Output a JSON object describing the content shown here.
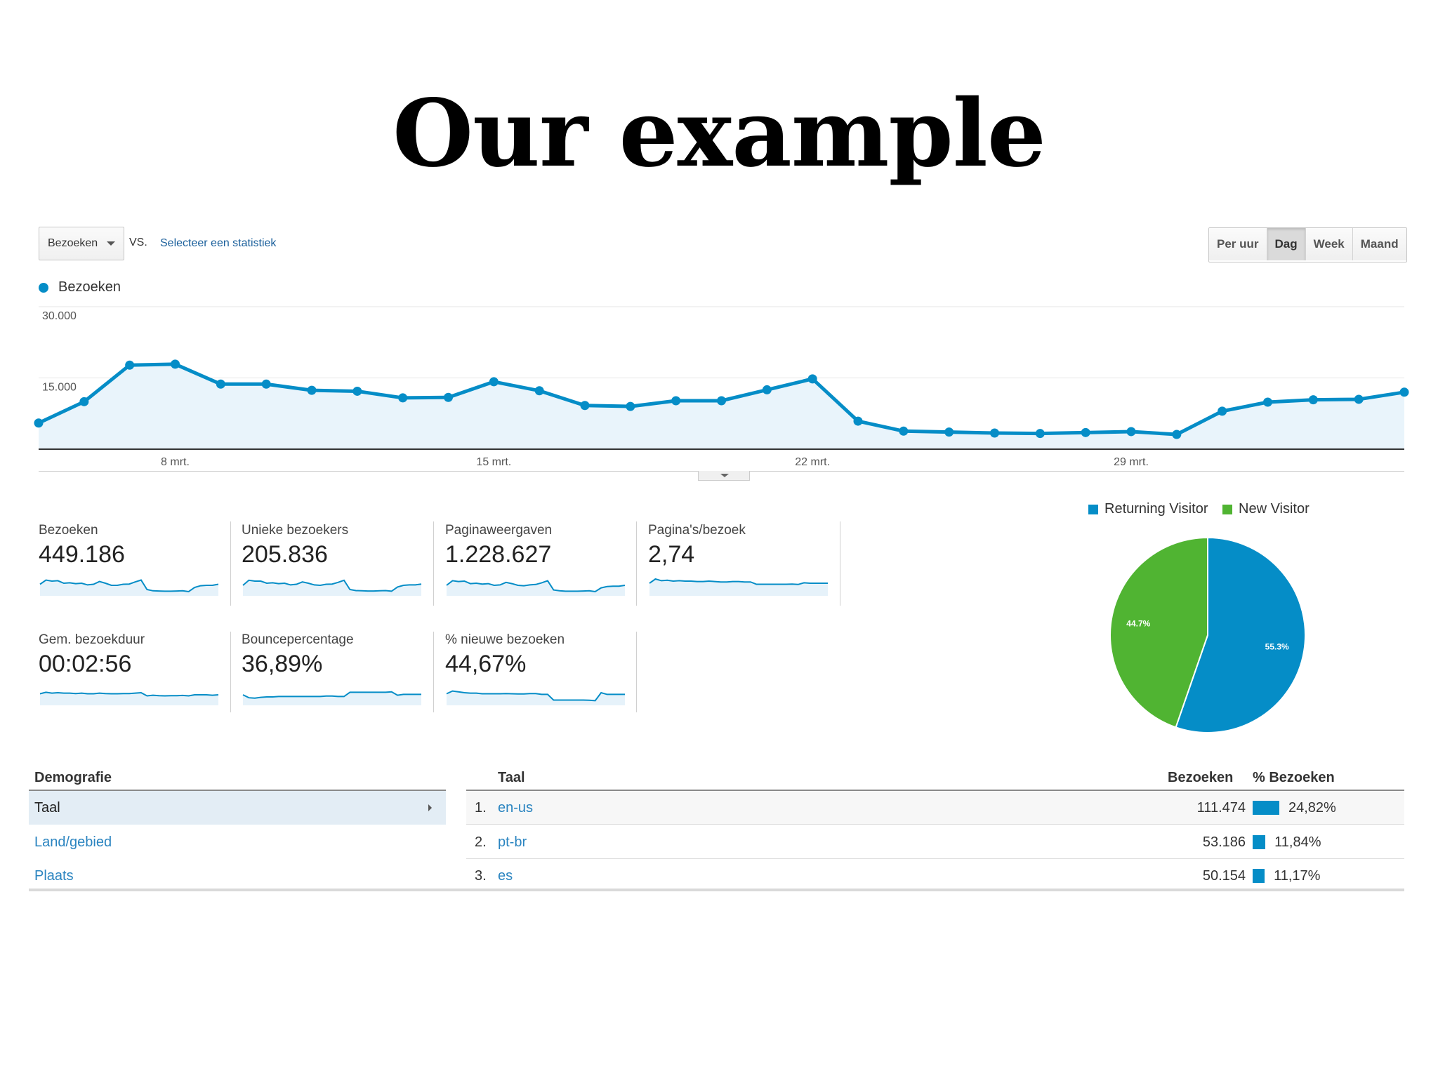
{
  "slide": {
    "title": "Our example"
  },
  "toolbar": {
    "metric_select": "Bezoeken",
    "vs_label": "VS.",
    "select_stat_link": "Selecteer een statistiek",
    "periods": [
      "Per uur",
      "Dag",
      "Week",
      "Maand"
    ],
    "active_period": "Dag"
  },
  "chart_data": {
    "type": "area",
    "series": [
      {
        "name": "Bezoeken",
        "values": [
          5500,
          10000,
          17700,
          17900,
          13700,
          13700,
          12400,
          12200,
          10800,
          10900,
          14200,
          12300,
          9200,
          9000,
          10200,
          10200,
          12500,
          14800,
          5900,
          3800,
          3600,
          3400,
          3300,
          3500,
          3700,
          3100,
          8000,
          9900,
          10400,
          10500,
          12000
        ]
      }
    ],
    "x_tick_labels": [
      "8 mrt.",
      "15 mrt.",
      "22 mrt.",
      "29 mrt."
    ],
    "y_tick_labels": [
      "30.000",
      "15.000"
    ],
    "ylim": [
      0,
      30000
    ],
    "color": "#058dc7",
    "fill": "#e9f4fb",
    "legend": "top-left",
    "grid": true
  },
  "scorecards": [
    {
      "label": "Bezoeken",
      "value": "449.186",
      "sparkline": [
        0.55,
        0.75,
        0.7,
        0.72,
        0.6,
        0.62,
        0.58,
        0.6,
        0.52,
        0.55,
        0.68,
        0.6,
        0.5,
        0.5,
        0.55,
        0.56,
        0.66,
        0.75,
        0.3,
        0.24,
        0.23,
        0.22,
        0.22,
        0.23,
        0.24,
        0.2,
        0.4,
        0.48,
        0.5,
        0.5,
        0.55
      ]
    },
    {
      "label": "Unieke bezoekers",
      "value": "205.836",
      "sparkline": [
        0.5,
        0.74,
        0.7,
        0.7,
        0.6,
        0.62,
        0.58,
        0.6,
        0.52,
        0.55,
        0.66,
        0.6,
        0.52,
        0.5,
        0.55,
        0.56,
        0.64,
        0.74,
        0.3,
        0.25,
        0.24,
        0.23,
        0.23,
        0.24,
        0.25,
        0.22,
        0.42,
        0.5,
        0.52,
        0.52,
        0.56
      ]
    },
    {
      "label": "Paginaweergaven",
      "value": "1.228.627",
      "sparkline": [
        0.5,
        0.72,
        0.68,
        0.7,
        0.58,
        0.6,
        0.56,
        0.58,
        0.5,
        0.52,
        0.64,
        0.58,
        0.5,
        0.48,
        0.52,
        0.54,
        0.62,
        0.72,
        0.28,
        0.24,
        0.22,
        0.22,
        0.22,
        0.23,
        0.24,
        0.2,
        0.38,
        0.44,
        0.46,
        0.46,
        0.5
      ]
    },
    {
      "label": "Pagina's/bezoek",
      "value": "2,74",
      "sparkline": [
        0.6,
        0.8,
        0.72,
        0.74,
        0.7,
        0.72,
        0.7,
        0.7,
        0.68,
        0.68,
        0.7,
        0.68,
        0.66,
        0.66,
        0.68,
        0.68,
        0.66,
        0.66,
        0.55,
        0.55,
        0.55,
        0.55,
        0.55,
        0.55,
        0.56,
        0.54,
        0.62,
        0.6,
        0.6,
        0.6,
        0.6
      ]
    },
    {
      "label": "Gem. bezoekduur",
      "value": "00:02:56",
      "sparkline": [
        0.55,
        0.62,
        0.58,
        0.6,
        0.58,
        0.58,
        0.56,
        0.58,
        0.55,
        0.55,
        0.58,
        0.56,
        0.55,
        0.55,
        0.56,
        0.56,
        0.58,
        0.6,
        0.45,
        0.48,
        0.46,
        0.45,
        0.46,
        0.46,
        0.47,
        0.45,
        0.5,
        0.5,
        0.5,
        0.48,
        0.5
      ]
    },
    {
      "label": "Bouncepercentage",
      "value": "36,89%",
      "sparkline": [
        0.5,
        0.36,
        0.34,
        0.38,
        0.4,
        0.4,
        0.42,
        0.42,
        0.42,
        0.42,
        0.42,
        0.42,
        0.42,
        0.42,
        0.44,
        0.44,
        0.42,
        0.42,
        0.62,
        0.62,
        0.62,
        0.62,
        0.62,
        0.62,
        0.62,
        0.64,
        0.48,
        0.52,
        0.52,
        0.52,
        0.52
      ]
    },
    {
      "label": "% nieuwe bezoeken",
      "value": "44,67%",
      "sparkline": [
        0.55,
        0.68,
        0.64,
        0.6,
        0.58,
        0.58,
        0.55,
        0.55,
        0.55,
        0.55,
        0.56,
        0.55,
        0.54,
        0.54,
        0.56,
        0.56,
        0.52,
        0.52,
        0.25,
        0.25,
        0.25,
        0.25,
        0.25,
        0.25,
        0.24,
        0.22,
        0.6,
        0.52,
        0.52,
        0.52,
        0.52
      ]
    }
  ],
  "visitor_pie": {
    "type": "pie",
    "legend": [
      {
        "label": "Returning Visitor",
        "color": "#058dc7"
      },
      {
        "label": "New Visitor",
        "color": "#50b432"
      }
    ],
    "slices": [
      {
        "label": "Returning Visitor",
        "value": 55.3,
        "text": "55.3%",
        "color": "#058dc7"
      },
      {
        "label": "New Visitor",
        "value": 44.7,
        "text": "44.7%",
        "color": "#50b432"
      }
    ]
  },
  "demography": {
    "header": "Demografie",
    "items": [
      {
        "label": "Taal",
        "active": true
      },
      {
        "label": "Land/gebied",
        "active": false
      },
      {
        "label": "Plaats",
        "active": false
      }
    ]
  },
  "language_table": {
    "headers": {
      "name": "Taal",
      "visits": "Bezoeken",
      "pct": "% Bezoeken"
    },
    "rows": [
      {
        "index": "1.",
        "name": "en-us",
        "visits": "111.474",
        "pct": "24,82%",
        "share": 24.82
      },
      {
        "index": "2.",
        "name": "pt-br",
        "visits": "53.186",
        "pct": "11,84%",
        "share": 11.84
      },
      {
        "index": "3.",
        "name": "es",
        "visits": "50.154",
        "pct": "11,17%",
        "share": 11.17
      }
    ]
  }
}
